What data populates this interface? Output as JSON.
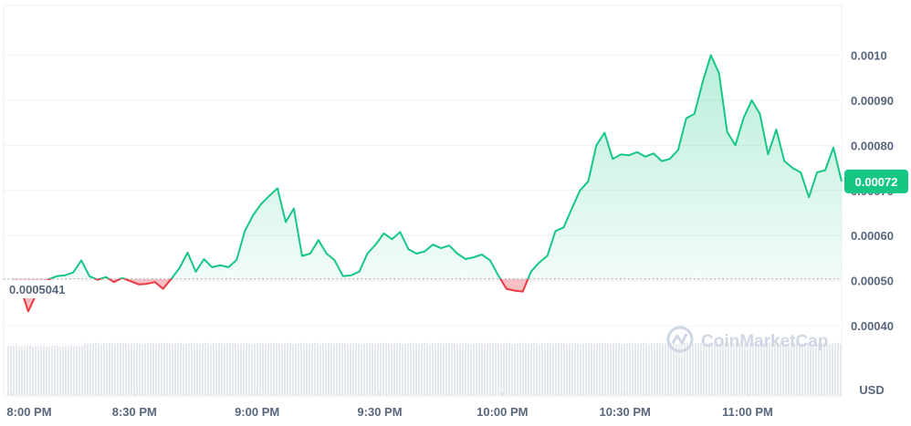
{
  "chart_data": {
    "type": "area",
    "baseline": {
      "value": 0.0005041,
      "label": "0.0005041"
    },
    "current_price": {
      "value": 0.00072,
      "label": "0.00072"
    },
    "currency_label": "USD",
    "watermark": "CoinMarketCap",
    "x_ticks": [
      "8:00 PM",
      "8:30 PM",
      "9:00 PM",
      "9:30 PM",
      "10:00 PM",
      "10:30 PM",
      "11:00 PM"
    ],
    "x_tick_minutes": [
      0,
      30,
      60,
      90,
      120,
      150,
      180
    ],
    "y_ticks": [
      "0.00040",
      "0.00050",
      "0.00060",
      "0.00070",
      "0.00080",
      "0.00090",
      "0.0010"
    ],
    "y_tick_values": [
      0.0004,
      0.0005,
      0.0006,
      0.0007,
      0.0008,
      0.0009,
      0.001
    ],
    "ylim": [
      0.00037,
      0.00111
    ],
    "xlim_minutes": [
      -2,
      203
    ],
    "x_unit": "minutes after 8:00 PM",
    "grid": true,
    "colors": {
      "up": "#16c784",
      "down": "#ea3943",
      "baseline": "#a6b0c3",
      "grid": "#eff2f5",
      "volume": "#e6e9ee",
      "watermark": "#cfd6e4"
    },
    "series": [
      {
        "x": [
          0,
          2,
          4,
          6,
          9,
          11,
          13,
          15,
          17,
          19,
          21,
          23,
          25,
          27,
          29,
          31,
          33,
          35,
          37,
          39,
          41,
          43,
          45,
          47,
          49,
          51,
          53,
          55,
          57,
          59,
          61,
          63,
          65,
          67,
          69,
          71,
          73,
          75,
          77,
          79,
          81,
          83,
          85,
          87,
          89,
          91,
          93,
          95,
          97,
          99,
          101,
          103,
          105,
          107,
          109,
          111,
          113,
          115,
          117,
          119,
          121,
          123,
          125,
          127,
          129,
          131,
          133,
          135,
          137,
          139,
          141,
          143,
          145,
          147,
          149,
          151,
          153,
          155,
          157,
          159,
          161,
          163,
          165,
          167,
          169,
          171,
          173,
          175,
          177,
          179,
          181,
          183,
          185,
          187,
          189,
          191,
          193,
          195,
          197,
          199,
          201,
          203
        ],
        "values": [
          0.000495,
          0.000487,
          0.000432,
          0.00047,
          0.000503,
          0.00051,
          0.000512,
          0.000518,
          0.000545,
          0.00051,
          0.000502,
          0.000508,
          0.000497,
          0.000506,
          0.000499,
          0.000492,
          0.000493,
          0.000497,
          0.000482,
          0.000504,
          0.000528,
          0.000562,
          0.00052,
          0.000548,
          0.00053,
          0.000534,
          0.00053,
          0.000546,
          0.00061,
          0.000645,
          0.00067,
          0.000688,
          0.000705,
          0.00063,
          0.00066,
          0.000555,
          0.00056,
          0.00059,
          0.00056,
          0.000545,
          0.00051,
          0.000512,
          0.00052,
          0.00056,
          0.00058,
          0.000605,
          0.000592,
          0.000608,
          0.00057,
          0.00056,
          0.000565,
          0.00058,
          0.000572,
          0.000578,
          0.00056,
          0.000548,
          0.000552,
          0.000558,
          0.000545,
          0.000512,
          0.000482,
          0.000478,
          0.000476,
          0.00052,
          0.00054,
          0.000555,
          0.00061,
          0.000618,
          0.00066,
          0.0007,
          0.00072,
          0.0008,
          0.000828,
          0.00077,
          0.00078,
          0.000778,
          0.000785,
          0.000775,
          0.000782,
          0.000765,
          0.00077,
          0.00079,
          0.00086,
          0.00087,
          0.00094,
          0.001,
          0.00096,
          0.00083,
          0.0008,
          0.00086,
          0.0009,
          0.00087,
          0.00078,
          0.000835,
          0.000765,
          0.00075,
          0.00074,
          0.000685,
          0.00074,
          0.000745,
          0.000795,
          0.00072
        ]
      }
    ]
  }
}
